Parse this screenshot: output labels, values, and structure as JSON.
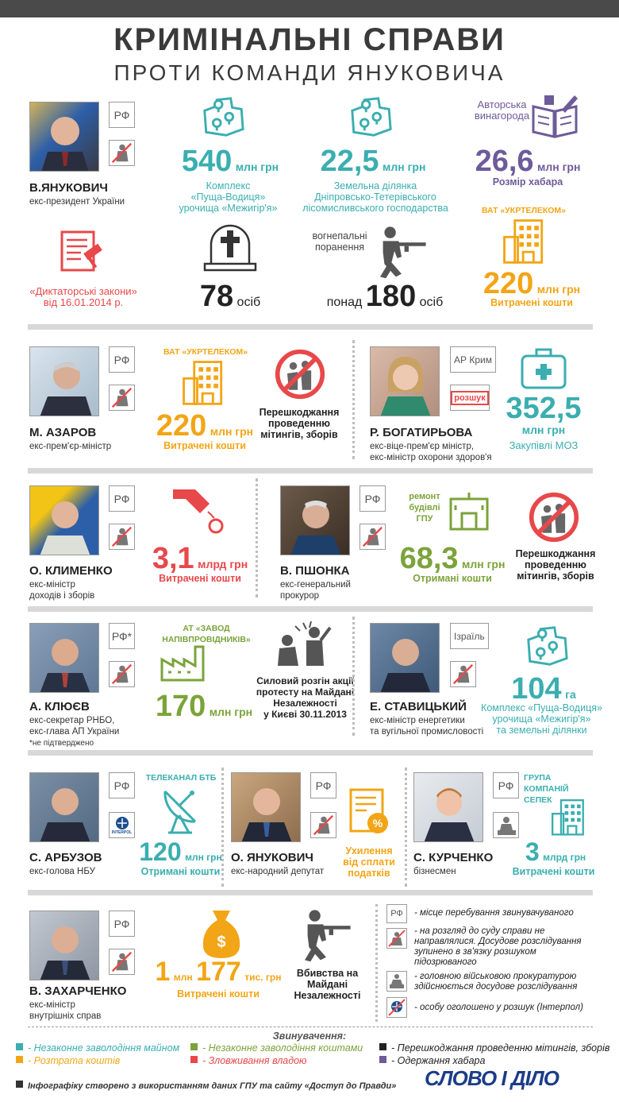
{
  "header": {
    "title": "КРИМІНАЛЬНІ СПРАВИ",
    "subtitle": "ПРОТИ КОМАНДИ ЯНУКОВИЧА"
  },
  "colors": {
    "teal": "#3aaeb0",
    "green": "#7ba33a",
    "black": "#222222",
    "orange": "#f2a516",
    "red": "#e8484a",
    "purple": "#6d5b9a"
  },
  "yanukovych": {
    "name": "В.ЯНУКОВИЧ",
    "position": "екс-президент України",
    "badge": "РФ",
    "case1": {
      "value": "540",
      "unit": "млн грн",
      "caption1": "Комплекс",
      "caption2": "«Пуща-Водиця»",
      "caption3": "урочища «Межигір'я»"
    },
    "case2": {
      "value": "22,5",
      "unit": "млн грн",
      "caption1": "Земельна ділянка",
      "caption2": "Дніпровсько-Тетерівського",
      "caption3": "лісомисливського господарства"
    },
    "case3": {
      "label1": "Авторська",
      "label2": "винагорода",
      "value": "26,6",
      "unit": "млн грн",
      "caption": "Розмір хабара"
    },
    "case4": {
      "caption1": "«Диктаторські закони»",
      "caption2": "від 16.01.2014 р."
    },
    "case5": {
      "value": "78",
      "unit": "осіб"
    },
    "case6": {
      "label1": "вогнепальні",
      "label2": "поранення",
      "prefix": "понад",
      "value": "180",
      "unit": "осіб"
    },
    "case7": {
      "company": "ВАТ «УКРТЕЛЕКОМ»",
      "value": "220",
      "unit": "млн грн",
      "caption": "Витрачені кошти"
    }
  },
  "azarov": {
    "name": "М. АЗАРОВ",
    "position": "екс-прем'єр-міністр",
    "badge": "РФ",
    "case1": {
      "company": "ВАТ «УКРТЕЛЕКОМ»",
      "value": "220",
      "unit": "млн грн",
      "caption": "Витрачені кошти"
    },
    "case2": {
      "caption1": "Перешкоджання",
      "caption2": "проведенню",
      "caption3": "мітингів, зборів"
    }
  },
  "bohatyryova": {
    "name": "Р. БОГАТИРЬОВА",
    "position1": "екс-віце-прем'єр міністр,",
    "position2": "екс-міністр охорони здоров'я",
    "badge": "АР Крим",
    "search_badge": "розшук",
    "case1": {
      "value": "352,5",
      "unit": "млн грн",
      "caption": "Закупівлі МОЗ"
    }
  },
  "klymenko": {
    "name": "О. КЛИМЕНКО",
    "position1": "екс-міністр",
    "position2": "доходів і зборів",
    "badge": "РФ",
    "case1": {
      "value": "3,1",
      "unit": "млрд грн",
      "caption": "Витрачені кошти"
    }
  },
  "pshonka": {
    "name": "В. ПШОНКА",
    "position1": "екс-генеральний",
    "position2": "прокурор",
    "badge": "РФ",
    "case1": {
      "label1": "ремонт",
      "label2": "будівлі",
      "label3": "ГПУ",
      "value": "68,3",
      "unit": "млн грн",
      "caption": "Отримані кошти"
    },
    "case2": {
      "caption1": "Перешкоджання",
      "caption2": "проведенню",
      "caption3": "мітингів, зборів"
    }
  },
  "kliuev": {
    "name": "А. КЛЮЄВ",
    "position1": "екс-секретар РНБО,",
    "position2": "екс-глава АП України",
    "note": "*не підтверджено",
    "badge": "РФ*",
    "case1": {
      "company1": "АТ «ЗАВОД",
      "company2": "НАПІВПРОВІДНИКІВ»",
      "value": "170",
      "unit": "млн грн"
    },
    "case2": {
      "caption1": "Силовий розгін акції",
      "caption2": "протесту на Майдані",
      "caption3": "Незалежності",
      "caption4": "у Києві 30.11.2013"
    }
  },
  "stavytskyi": {
    "name": "Е. СТАВИЦЬКИЙ",
    "position1": "екс-міністр енергетики",
    "position2": "та вугільної промисловості",
    "badge": "Ізраїль",
    "case1": {
      "value": "104",
      "unit": "га",
      "caption1": "Комплекс «Пуща-Водиця»",
      "caption2": "урочища «Межигір'я»",
      "caption3": "та земельні ділянки"
    }
  },
  "arbuzov": {
    "name": "С. АРБУЗОВ",
    "position": "екс-голова НБУ",
    "badge": "РФ",
    "interpol": "INTERPOL",
    "case1": {
      "company": "ТЕЛЕКАНАЛ БТБ",
      "value": "120",
      "unit": "млн грн",
      "caption": "Отримані кошти"
    }
  },
  "o_yanukovych": {
    "name": "О. ЯНУКОВИЧ",
    "position": "екс-народний депутат",
    "badge": "РФ",
    "case1": {
      "caption1": "Ухилення",
      "caption2": "від сплати",
      "caption3": "податків"
    }
  },
  "kurchenko": {
    "name": "С. КУРЧЕНКО",
    "position": "бізнесмен",
    "badge": "РФ",
    "case1": {
      "company1": "ГРУПА",
      "company2": "КОМПАНІЙ",
      "company3": "СЕПЕК",
      "value": "3",
      "unit": "млрд грн",
      "caption": "Витрачені кошти"
    }
  },
  "zakharchenko": {
    "name": "В. ЗАХАРЧЕНКО",
    "position1": "екс-міністр",
    "position2": "внутрішніх справ",
    "badge": "РФ",
    "case1": {
      "v1": "1",
      "u1": "млн",
      "v2": "177",
      "u2": "тис. грн",
      "caption": "Витрачені кошти"
    },
    "case2": {
      "caption1": "Вбивства на",
      "caption2": "Майдані",
      "caption3": "Незалежності"
    }
  },
  "key": {
    "badge": "РФ",
    "item1": "- місце перебування звинувачуваного",
    "item2a": "- на розгляд до суду справи не",
    "item2b": "направлялися. Досудове розслідування",
    "item2c": "зупинено в зв'язку розшуком",
    "item2d": "підозрюваного",
    "item3a": "- головною військовою прокуратурою",
    "item3b": "здійснюється досудове розслідування",
    "item4": "- особу оголошено у розшук (Інтерпол)"
  },
  "legend": {
    "title": "Звинувачення:",
    "items": [
      "- Незаконне заволодіння майном",
      "- Незаконне заволодіння коштами",
      "- Перешкоджання проведенню мітингів, зборів",
      "- Розтрата коштів",
      "- Зловживання владою",
      "- Одержання хабара"
    ]
  },
  "footer": {
    "note": "Інфографіку створено з використанням даних ГПУ та сайту «Доступ до Правди»",
    "logo": "СЛОВО І ДІЛО"
  }
}
